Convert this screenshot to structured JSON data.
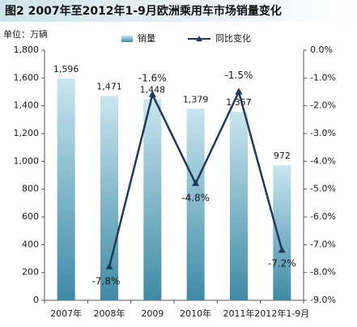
{
  "chart_data": {
    "type": "bar+line",
    "title": "图2 2007年至2012年1-9月欧洲乘用车市场销量变化",
    "unit_label": "单位：万辆",
    "categories": [
      "2007年",
      "2008年",
      "2009",
      "2010年",
      "2011年",
      "2012年1-9月"
    ],
    "legend": {
      "placement": "top-center",
      "bar_series": "销量",
      "line_series": "同比变化"
    },
    "series": [
      {
        "name": "销量",
        "kind": "bar",
        "axis": "left",
        "values": [
          1596,
          1471,
          1448,
          1379,
          1357,
          972
        ],
        "labels": [
          "1,596",
          "1,471",
          "1,448",
          "1,379",
          "1,357",
          "972"
        ]
      },
      {
        "name": "同比变化",
        "kind": "line",
        "axis": "right",
        "values": [
          null,
          -7.8,
          -1.6,
          -4.8,
          -1.5,
          -7.2
        ],
        "labels": [
          "",
          "-7.8%",
          "-1.6%",
          "-4.8%",
          "-1.5%",
          "-7.2%"
        ]
      }
    ],
    "left_axis": {
      "ylim": [
        0,
        1800
      ],
      "ticks": [
        0,
        200,
        400,
        600,
        800,
        1000,
        1200,
        1400,
        1600,
        1800
      ],
      "tick_labels": [
        "0",
        "200",
        "400",
        "600",
        "800",
        "1,000",
        "1,200",
        "1,400",
        "1,600",
        "1,800"
      ]
    },
    "right_axis": {
      "ylim": [
        -9,
        0
      ],
      "ticks": [
        0,
        -1,
        -2,
        -3,
        -4,
        -5,
        -6,
        -7,
        -8,
        -9
      ],
      "tick_labels": [
        "0.0%",
        "-1.0%",
        "-2.0%",
        "-3.0%",
        "-4.0%",
        "-5.0%",
        "-6.0%",
        "-7.0%",
        "-8.0%",
        "-9.0%"
      ]
    },
    "grid": false,
    "colors": {
      "bar_top": "#c9e6ef",
      "bar_bottom": "#3f8aa6",
      "line": "#1f3a5a",
      "pct_label": "#e0342b",
      "title_bar": "#cfe3ec"
    }
  }
}
